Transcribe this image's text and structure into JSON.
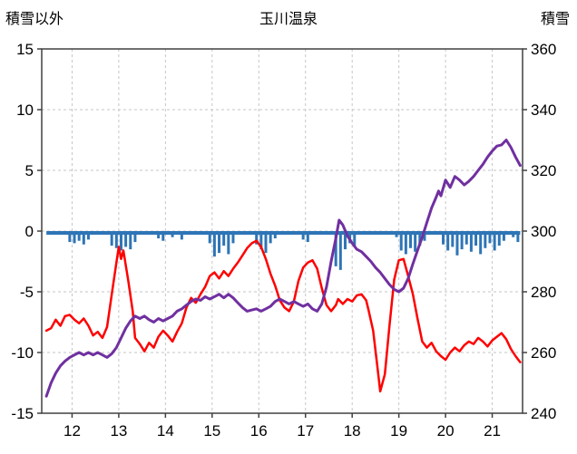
{
  "chart_data": {
    "type": "line",
    "title": "玉川温泉",
    "left_axis": {
      "title": "積雪以外",
      "min": -15,
      "max": 15,
      "ticks": [
        15,
        10,
        5,
        0,
        -5,
        -10,
        -15
      ]
    },
    "right_axis": {
      "title": "積雪",
      "min": 240,
      "max": 360,
      "ticks": [
        360,
        340,
        320,
        300,
        280,
        260,
        240
      ]
    },
    "x_axis": {
      "min": 11.35,
      "max": 21.65,
      "ticks": [
        12,
        13,
        14,
        15,
        16,
        17,
        18,
        19,
        20,
        21
      ]
    },
    "grid": {
      "color": "#c6c6c6",
      "dash": "3 3"
    },
    "border_color": "#404040",
    "text_color": "#000000",
    "legend": "none",
    "series": [
      {
        "name": "series-red",
        "color": "#ff0000",
        "width": 2.5,
        "axis": "left",
        "points": [
          [
            11.45,
            -8.2
          ],
          [
            11.55,
            -8.0
          ],
          [
            11.65,
            -7.3
          ],
          [
            11.75,
            -7.8
          ],
          [
            11.85,
            -7.0
          ],
          [
            11.95,
            -6.9
          ],
          [
            12.05,
            -7.3
          ],
          [
            12.15,
            -7.6
          ],
          [
            12.25,
            -7.2
          ],
          [
            12.35,
            -7.8
          ],
          [
            12.45,
            -8.6
          ],
          [
            12.55,
            -8.3
          ],
          [
            12.65,
            -8.8
          ],
          [
            12.75,
            -7.9
          ],
          [
            12.85,
            -5.2
          ],
          [
            12.95,
            -2.6
          ],
          [
            13.0,
            -1.3
          ],
          [
            13.05,
            -2.3
          ],
          [
            13.1,
            -1.6
          ],
          [
            13.2,
            -4.0
          ],
          [
            13.3,
            -6.6
          ],
          [
            13.35,
            -8.8
          ],
          [
            13.45,
            -9.3
          ],
          [
            13.55,
            -9.9
          ],
          [
            13.65,
            -9.2
          ],
          [
            13.75,
            -9.6
          ],
          [
            13.85,
            -8.7
          ],
          [
            13.95,
            -8.2
          ],
          [
            14.05,
            -8.6
          ],
          [
            14.15,
            -9.1
          ],
          [
            14.25,
            -8.3
          ],
          [
            14.35,
            -7.6
          ],
          [
            14.45,
            -6.3
          ],
          [
            14.55,
            -5.5
          ],
          [
            14.65,
            -5.9
          ],
          [
            14.75,
            -5.2
          ],
          [
            14.85,
            -4.6
          ],
          [
            14.95,
            -3.7
          ],
          [
            15.05,
            -3.4
          ],
          [
            15.15,
            -3.9
          ],
          [
            15.25,
            -3.3
          ],
          [
            15.35,
            -3.7
          ],
          [
            15.45,
            -3.1
          ],
          [
            15.55,
            -2.6
          ],
          [
            15.65,
            -2.0
          ],
          [
            15.75,
            -1.4
          ],
          [
            15.85,
            -1.0
          ],
          [
            15.95,
            -0.8
          ],
          [
            16.05,
            -1.3
          ],
          [
            16.15,
            -2.3
          ],
          [
            16.25,
            -3.5
          ],
          [
            16.35,
            -4.5
          ],
          [
            16.45,
            -5.7
          ],
          [
            16.55,
            -6.3
          ],
          [
            16.65,
            -6.6
          ],
          [
            16.75,
            -5.8
          ],
          [
            16.85,
            -4.1
          ],
          [
            16.95,
            -3.0
          ],
          [
            17.05,
            -2.6
          ],
          [
            17.15,
            -2.4
          ],
          [
            17.25,
            -3.1
          ],
          [
            17.35,
            -4.7
          ],
          [
            17.45,
            -6.1
          ],
          [
            17.55,
            -6.6
          ],
          [
            17.65,
            -6.1
          ],
          [
            17.7,
            -5.6
          ],
          [
            17.8,
            -6.0
          ],
          [
            17.9,
            -5.6
          ],
          [
            18.0,
            -5.8
          ],
          [
            18.1,
            -5.3
          ],
          [
            18.2,
            -5.2
          ],
          [
            18.3,
            -5.7
          ],
          [
            18.35,
            -6.5
          ],
          [
            18.45,
            -8.2
          ],
          [
            18.55,
            -11.5
          ],
          [
            18.6,
            -13.2
          ],
          [
            18.7,
            -11.8
          ],
          [
            18.8,
            -7.8
          ],
          [
            18.9,
            -4.0
          ],
          [
            19.0,
            -2.4
          ],
          [
            19.1,
            -2.3
          ],
          [
            19.2,
            -3.7
          ],
          [
            19.3,
            -5.2
          ],
          [
            19.4,
            -7.2
          ],
          [
            19.5,
            -9.1
          ],
          [
            19.6,
            -9.6
          ],
          [
            19.7,
            -9.2
          ],
          [
            19.8,
            -9.9
          ],
          [
            19.9,
            -10.3
          ],
          [
            20.0,
            -10.6
          ],
          [
            20.1,
            -10.0
          ],
          [
            20.2,
            -9.6
          ],
          [
            20.3,
            -9.9
          ],
          [
            20.4,
            -9.4
          ],
          [
            20.5,
            -9.1
          ],
          [
            20.6,
            -9.3
          ],
          [
            20.7,
            -8.8
          ],
          [
            20.8,
            -9.1
          ],
          [
            20.9,
            -9.5
          ],
          [
            21.0,
            -9.0
          ],
          [
            21.1,
            -8.7
          ],
          [
            21.2,
            -8.4
          ],
          [
            21.3,
            -8.9
          ],
          [
            21.4,
            -9.7
          ],
          [
            21.5,
            -10.3
          ],
          [
            21.6,
            -10.8
          ]
        ]
      },
      {
        "name": "series-purple",
        "color": "#7030a0",
        "width": 3,
        "axis": "left",
        "points": [
          [
            11.45,
            -13.6
          ],
          [
            11.55,
            -12.5
          ],
          [
            11.65,
            -11.7
          ],
          [
            11.75,
            -11.1
          ],
          [
            11.85,
            -10.7
          ],
          [
            11.95,
            -10.4
          ],
          [
            12.05,
            -10.2
          ],
          [
            12.15,
            -10.0
          ],
          [
            12.25,
            -10.2
          ],
          [
            12.35,
            -10.0
          ],
          [
            12.45,
            -10.2
          ],
          [
            12.55,
            -10.0
          ],
          [
            12.65,
            -10.2
          ],
          [
            12.75,
            -10.4
          ],
          [
            12.85,
            -10.1
          ],
          [
            12.95,
            -9.6
          ],
          [
            13.05,
            -8.8
          ],
          [
            13.15,
            -8.0
          ],
          [
            13.25,
            -7.4
          ],
          [
            13.35,
            -7.0
          ],
          [
            13.45,
            -7.2
          ],
          [
            13.55,
            -7.0
          ],
          [
            13.65,
            -7.3
          ],
          [
            13.75,
            -7.5
          ],
          [
            13.85,
            -7.2
          ],
          [
            13.95,
            -7.4
          ],
          [
            14.05,
            -7.2
          ],
          [
            14.15,
            -7.0
          ],
          [
            14.25,
            -6.6
          ],
          [
            14.35,
            -6.4
          ],
          [
            14.45,
            -6.1
          ],
          [
            14.55,
            -5.8
          ],
          [
            14.65,
            -5.6
          ],
          [
            14.75,
            -5.7
          ],
          [
            14.85,
            -5.4
          ],
          [
            14.95,
            -5.6
          ],
          [
            15.05,
            -5.4
          ],
          [
            15.15,
            -5.2
          ],
          [
            15.25,
            -5.5
          ],
          [
            15.35,
            -5.2
          ],
          [
            15.45,
            -5.5
          ],
          [
            15.55,
            -5.9
          ],
          [
            15.65,
            -6.3
          ],
          [
            15.75,
            -6.6
          ],
          [
            15.85,
            -6.5
          ],
          [
            15.95,
            -6.4
          ],
          [
            16.05,
            -6.6
          ],
          [
            16.15,
            -6.4
          ],
          [
            16.25,
            -6.2
          ],
          [
            16.35,
            -5.8
          ],
          [
            16.45,
            -5.6
          ],
          [
            16.55,
            -5.8
          ],
          [
            16.65,
            -6.0
          ],
          [
            16.75,
            -5.8
          ],
          [
            16.85,
            -6.0
          ],
          [
            16.95,
            -6.2
          ],
          [
            17.05,
            -6.0
          ],
          [
            17.15,
            -6.4
          ],
          [
            17.25,
            -6.6
          ],
          [
            17.35,
            -6.0
          ],
          [
            17.45,
            -4.6
          ],
          [
            17.55,
            -2.5
          ],
          [
            17.65,
            -0.6
          ],
          [
            17.72,
            0.9
          ],
          [
            17.8,
            0.5
          ],
          [
            17.9,
            -0.4
          ],
          [
            18.0,
            -1.0
          ],
          [
            18.1,
            -1.5
          ],
          [
            18.2,
            -1.7
          ],
          [
            18.3,
            -2.1
          ],
          [
            18.4,
            -2.5
          ],
          [
            18.5,
            -3.0
          ],
          [
            18.6,
            -3.4
          ],
          [
            18.7,
            -3.9
          ],
          [
            18.8,
            -4.4
          ],
          [
            18.9,
            -4.8
          ],
          [
            19.0,
            -5.0
          ],
          [
            19.1,
            -4.7
          ],
          [
            19.2,
            -3.9
          ],
          [
            19.3,
            -2.7
          ],
          [
            19.4,
            -1.6
          ],
          [
            19.5,
            -0.5
          ],
          [
            19.6,
            0.7
          ],
          [
            19.7,
            1.9
          ],
          [
            19.8,
            2.8
          ],
          [
            19.85,
            3.3
          ],
          [
            19.9,
            2.9
          ],
          [
            20.0,
            4.2
          ],
          [
            20.1,
            3.6
          ],
          [
            20.2,
            4.5
          ],
          [
            20.3,
            4.2
          ],
          [
            20.4,
            3.8
          ],
          [
            20.5,
            4.1
          ],
          [
            20.6,
            4.5
          ],
          [
            20.7,
            5.0
          ],
          [
            20.8,
            5.5
          ],
          [
            20.9,
            6.1
          ],
          [
            21.0,
            6.6
          ],
          [
            21.1,
            7.0
          ],
          [
            21.2,
            7.1
          ],
          [
            21.3,
            7.5
          ],
          [
            21.4,
            6.9
          ],
          [
            21.5,
            6.1
          ],
          [
            21.6,
            5.4
          ]
        ]
      }
    ],
    "bars": {
      "name": "snow-bars",
      "color": "#2e75b6",
      "width": 3,
      "axis": "left",
      "baseline": {
        "from": 11.45,
        "to": 21.6,
        "value": -0.3
      },
      "points": [
        [
          11.95,
          -0.9
        ],
        [
          12.05,
          -1.0
        ],
        [
          12.15,
          -0.8
        ],
        [
          12.25,
          -1.1
        ],
        [
          12.35,
          -0.7
        ],
        [
          12.85,
          -1.2
        ],
        [
          12.95,
          -1.4
        ],
        [
          13.05,
          -1.6
        ],
        [
          13.15,
          -1.3
        ],
        [
          13.25,
          -1.5
        ],
        [
          13.35,
          -0.9
        ],
        [
          13.85,
          -0.6
        ],
        [
          13.95,
          -0.8
        ],
        [
          14.15,
          -0.5
        ],
        [
          14.35,
          -0.7
        ],
        [
          14.95,
          -1.0
        ],
        [
          15.05,
          -2.1
        ],
        [
          15.15,
          -1.8
        ],
        [
          15.25,
          -1.2
        ],
        [
          15.35,
          -1.9
        ],
        [
          15.45,
          -1.0
        ],
        [
          15.95,
          -1.1
        ],
        [
          16.05,
          -1.5
        ],
        [
          16.15,
          -1.8
        ],
        [
          16.25,
          -1.0
        ],
        [
          16.35,
          -0.6
        ],
        [
          16.95,
          -0.7
        ],
        [
          17.05,
          -0.9
        ],
        [
          17.65,
          -2.9
        ],
        [
          17.75,
          -3.2
        ],
        [
          17.85,
          -1.5
        ],
        [
          17.95,
          -1.0
        ],
        [
          18.05,
          -1.2
        ],
        [
          18.95,
          -0.5
        ],
        [
          19.05,
          -1.6
        ],
        [
          19.15,
          -1.9
        ],
        [
          19.25,
          -1.4
        ],
        [
          19.35,
          -1.7
        ],
        [
          19.45,
          -1.2
        ],
        [
          19.55,
          -0.8
        ],
        [
          19.95,
          -1.1
        ],
        [
          20.05,
          -1.6
        ],
        [
          20.15,
          -1.3
        ],
        [
          20.25,
          -2.0
        ],
        [
          20.35,
          -1.5
        ],
        [
          20.45,
          -1.1
        ],
        [
          20.55,
          -1.7
        ],
        [
          20.65,
          -1.2
        ],
        [
          20.75,
          -1.9
        ],
        [
          20.85,
          -1.4
        ],
        [
          20.95,
          -1.0
        ],
        [
          21.05,
          -1.6
        ],
        [
          21.15,
          -1.2
        ],
        [
          21.25,
          -0.8
        ],
        [
          21.45,
          -0.5
        ],
        [
          21.55,
          -0.9
        ]
      ]
    }
  }
}
